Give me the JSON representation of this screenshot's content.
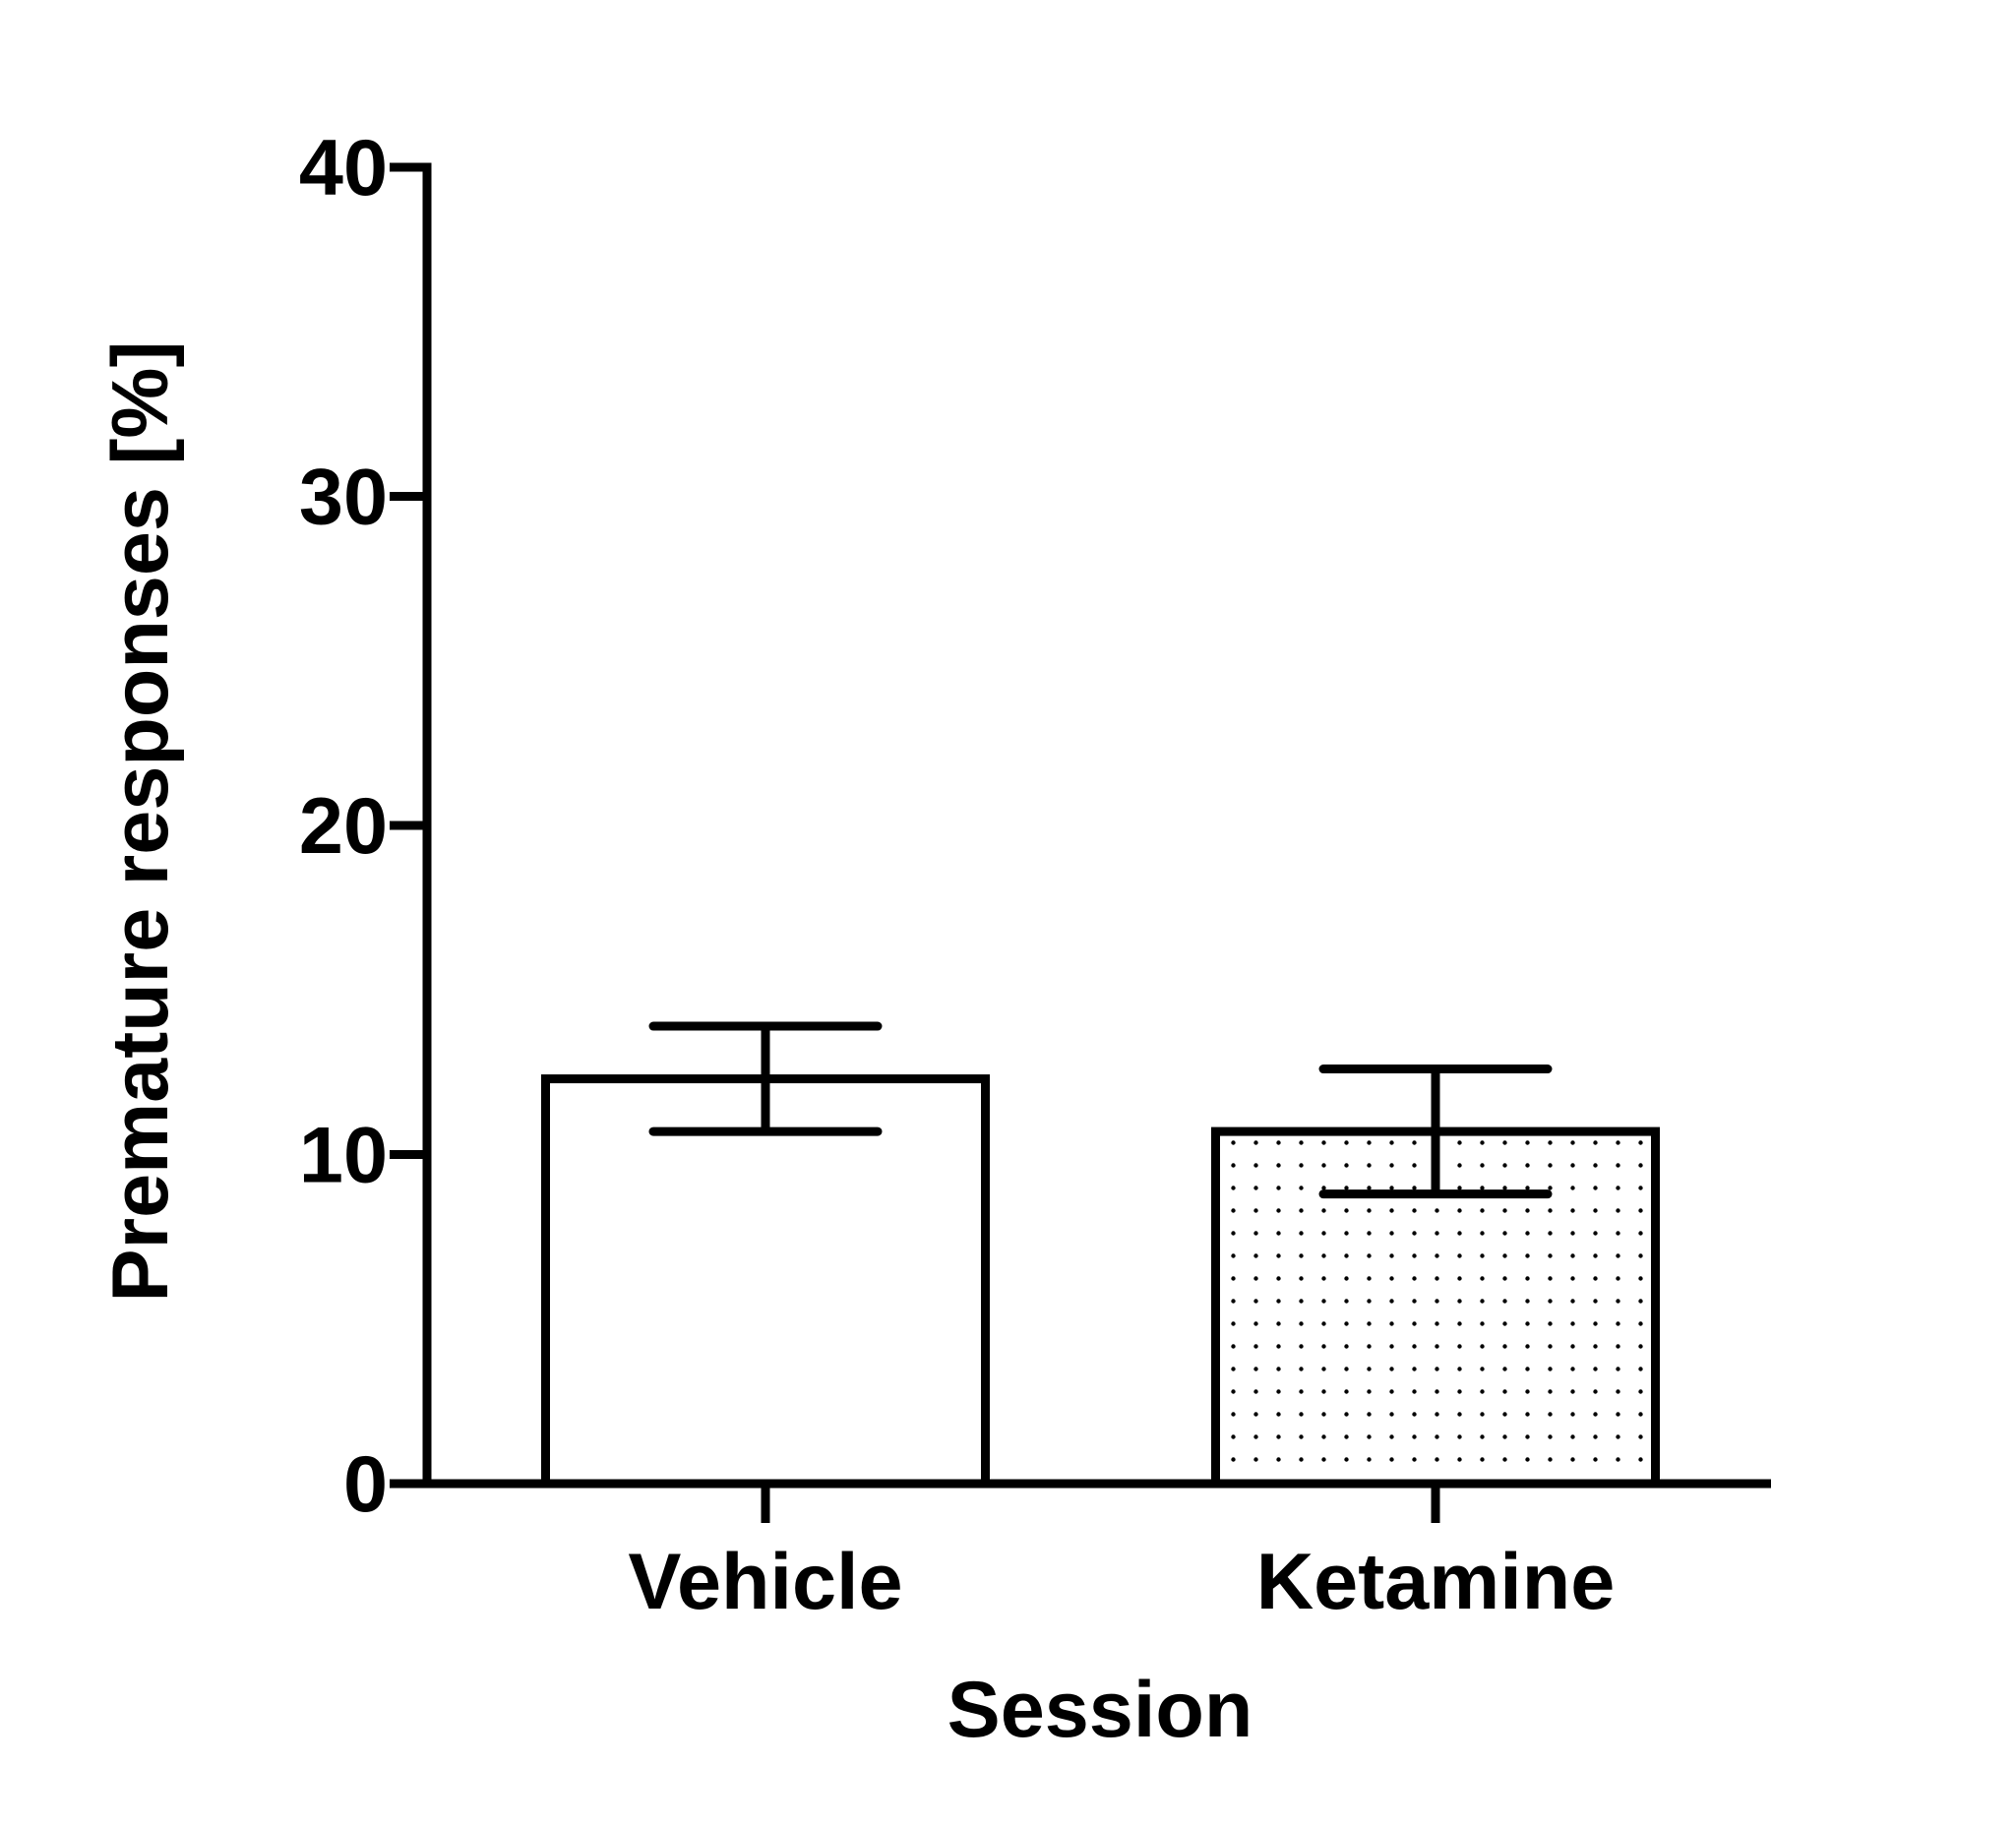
{
  "chart_data": {
    "type": "bar",
    "title": "",
    "xlabel": "Session",
    "ylabel": "Premature responses [%]",
    "ylim": [
      0,
      40
    ],
    "yticks": [
      0,
      10,
      20,
      30,
      40
    ],
    "ytick_labels": [
      "0",
      "10",
      "20",
      "30",
      "40"
    ],
    "categories": [
      "Vehicle",
      "Ketamine"
    ],
    "values": [
      12.3,
      10.7
    ],
    "error": [
      1.6,
      1.9
    ],
    "fill_patterns": [
      "none",
      "dots"
    ],
    "grid": false,
    "legend": "none",
    "colors": {
      "stroke": "#000000",
      "background": "#ffffff",
      "bar_fill": "#ffffff"
    }
  }
}
